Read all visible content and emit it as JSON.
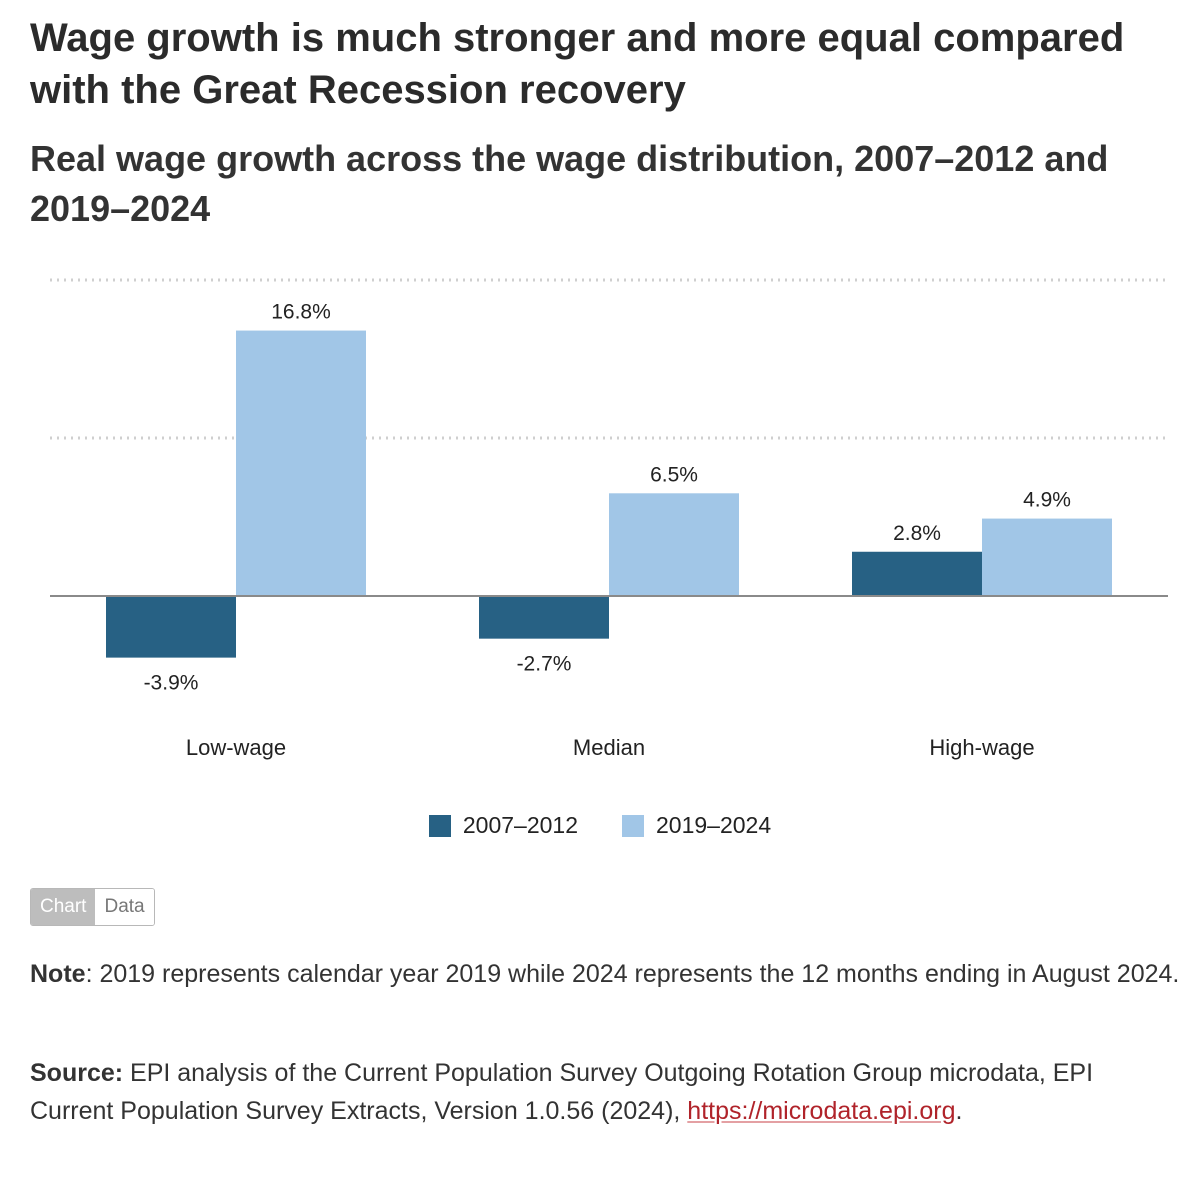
{
  "header": {
    "title": "Wage growth is much stronger and more equal compared with the Great Recession recovery",
    "subtitle": "Real wage growth across the wage distribution, 2007–2012 and 2019–2024"
  },
  "chart_data": {
    "type": "bar",
    "categories": [
      "Low-wage",
      "Median",
      "High-wage"
    ],
    "series": [
      {
        "name": "2007–2012",
        "values": [
          -3.9,
          -2.7,
          2.8
        ],
        "labels": [
          "-3.9%",
          "-2.7%",
          "2.8%"
        ],
        "color": "#276184"
      },
      {
        "name": "2019–2024",
        "values": [
          16.8,
          6.5,
          4.9
        ],
        "labels": [
          "16.8%",
          "6.5%",
          "4.9%"
        ],
        "color": "#a1c6e7"
      }
    ],
    "ylim": [
      -6,
      20
    ],
    "gridlines": [
      10,
      20
    ],
    "grid": true,
    "legend": "bottom-center"
  },
  "toggle": {
    "chart_label": "Chart",
    "data_label": "Data"
  },
  "note": {
    "label": "Note",
    "text": ": 2019 represents calendar year 2019 while 2024 represents the 12 months ending in August 2024."
  },
  "source": {
    "label": "Source:",
    "text": " EPI analysis of the Current Population Survey Outgoing Rotation Group microdata, EPI Current Population Survey Extracts, Version 1.0.56 (2024), ",
    "link": "https://microdata.epi.org",
    "end": "."
  }
}
